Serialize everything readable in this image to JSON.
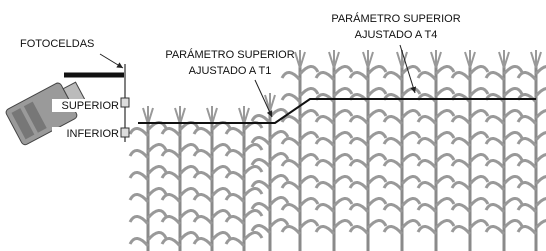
{
  "labels": {
    "photocells": "FOTOCELDAS",
    "upper": "SUPERIOR",
    "lower": "INFERIOR",
    "t1_line1": "PARÁMETRO SUPERIOR",
    "t1_line2": "AJUSTADO A T1",
    "t4_line1": "PARÁMETRO SUPERIOR",
    "t4_line2": "AJUSTADO A T4"
  }
}
